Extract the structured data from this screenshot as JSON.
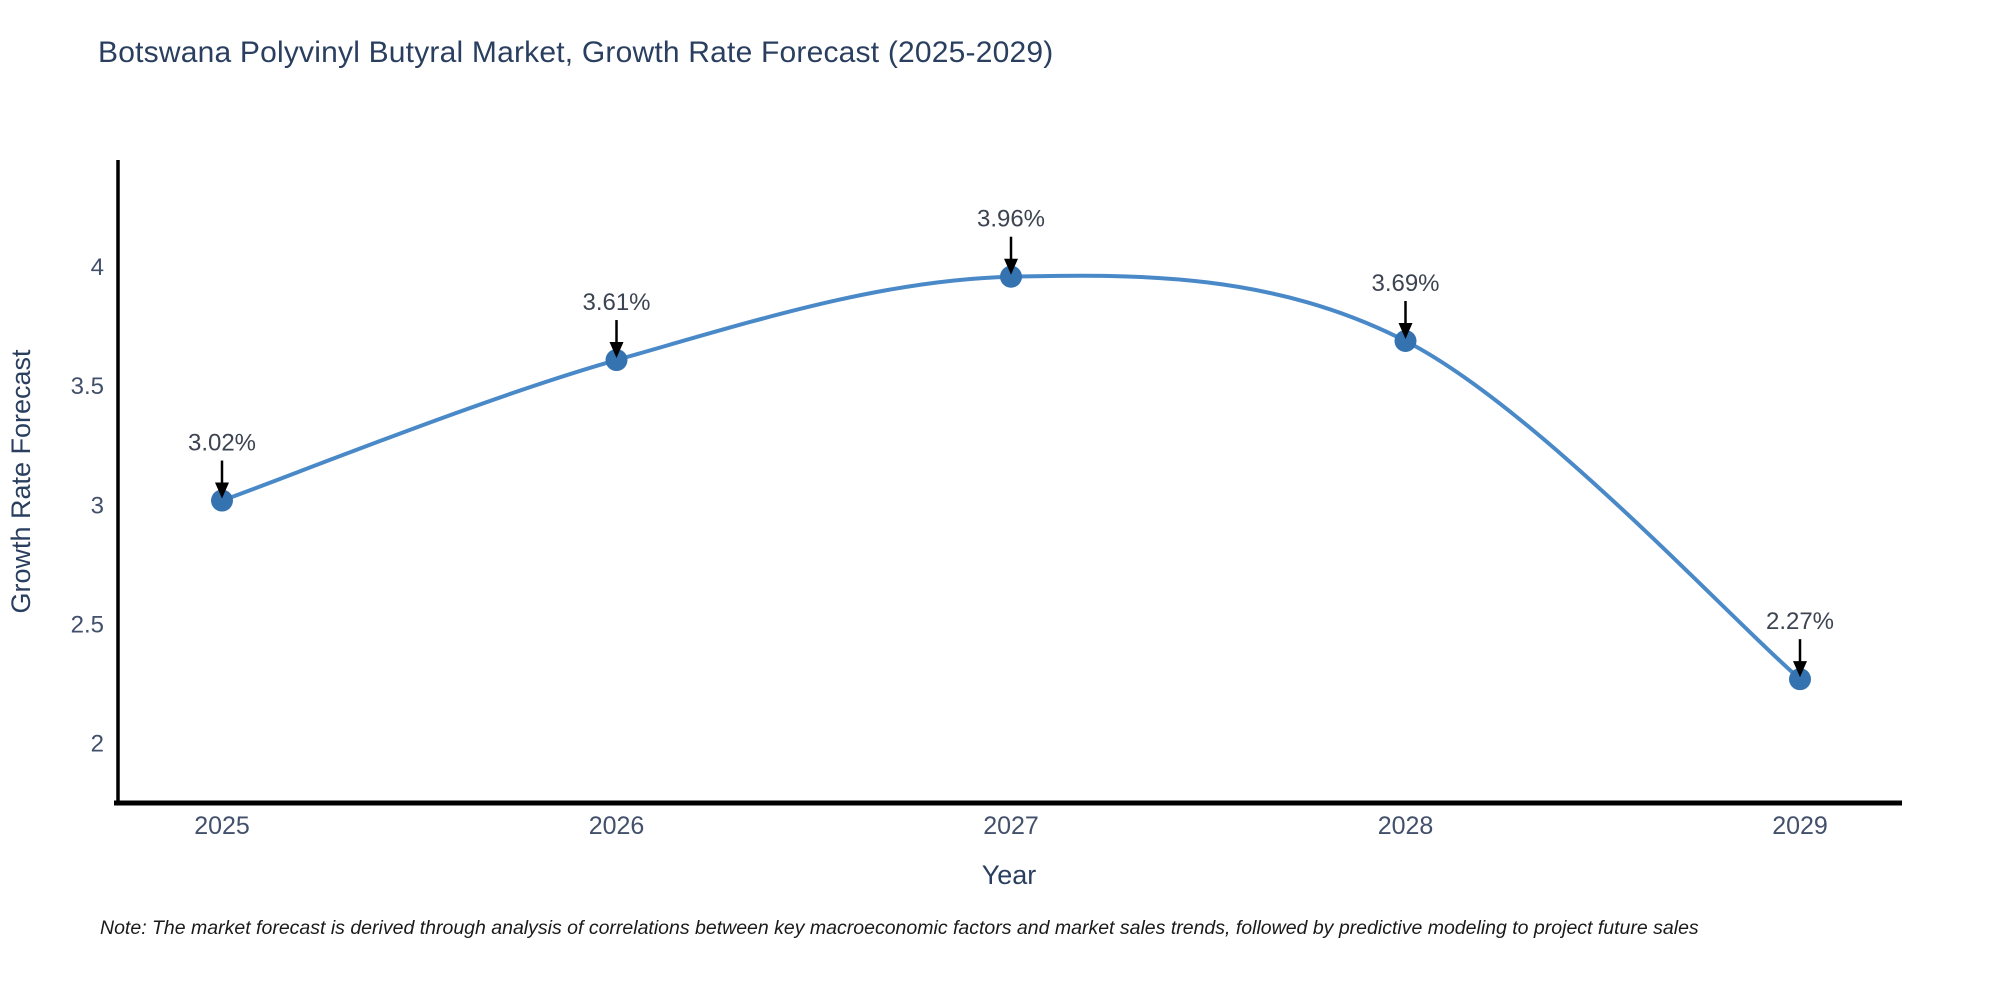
{
  "chart_data": {
    "type": "line",
    "title": "Botswana Polyvinyl Butyral Market, Growth Rate Forecast (2025-2029)",
    "xlabel": "Year",
    "ylabel": "Growth Rate Forecast",
    "categories": [
      "2025",
      "2026",
      "2027",
      "2028",
      "2029"
    ],
    "values": [
      3.02,
      3.61,
      3.96,
      3.69,
      2.27
    ],
    "point_labels": [
      "3.02%",
      "3.61%",
      "3.96%",
      "3.69%",
      "2.27%"
    ],
    "yticks": [
      2,
      2.5,
      3,
      3.5,
      4
    ],
    "ylim": [
      1.75,
      4.45
    ],
    "line_shape": "spline",
    "grid": false,
    "legend": "none",
    "colors": {
      "line": "#4a89c8",
      "marker": "#3572b0",
      "title": "#2a3f5f",
      "tick": "#42506b",
      "annotation": "#3d4451",
      "axis": "#000000"
    }
  },
  "note": "Note: The market forecast is derived through analysis of correlations between key macroeconomic factors and market sales trends, followed by predictive modeling to project future sales"
}
